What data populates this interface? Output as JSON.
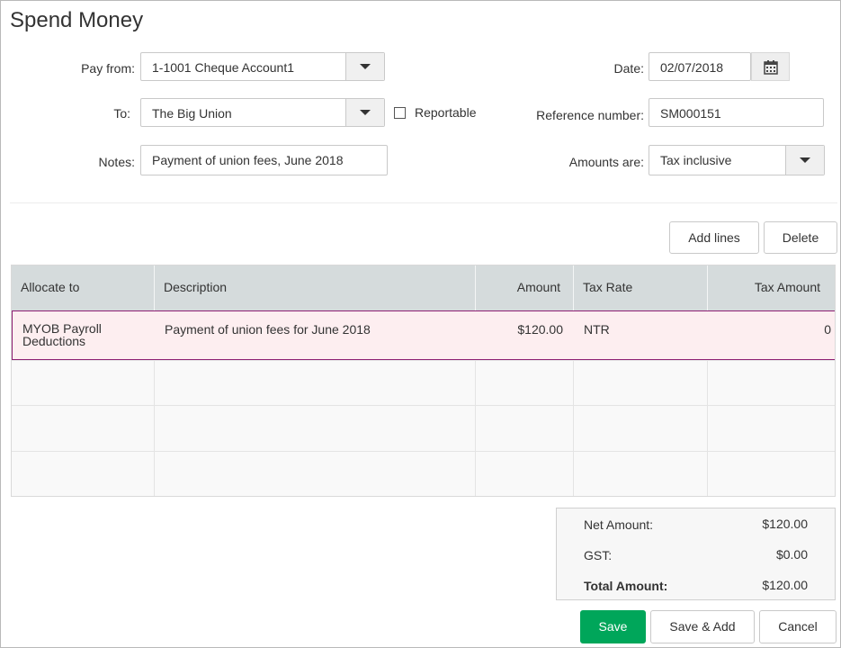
{
  "title": "Spend Money",
  "form": {
    "pay_from": {
      "label": "Pay from:",
      "value": "1-1001 Cheque Account1"
    },
    "to": {
      "label": "To:",
      "value": "The Big Union"
    },
    "reportable": {
      "label": "Reportable",
      "checked": false
    },
    "notes": {
      "label": "Notes:",
      "value": "Payment of union fees, June 2018"
    },
    "date": {
      "label": "Date:",
      "value": "02/07/2018"
    },
    "reference": {
      "label": "Reference number:",
      "value": "SM000151"
    },
    "amounts_are": {
      "label": "Amounts are:",
      "value": "Tax inclusive"
    }
  },
  "actions": {
    "add_lines": "Add lines",
    "delete": "Delete"
  },
  "table": {
    "columns": [
      "Allocate to",
      "Description",
      "Amount",
      "Tax Rate",
      "Tax Amount"
    ],
    "rows": [
      {
        "allocate_to_line1": "MYOB Payroll",
        "allocate_to_line2": "Deductions",
        "description": "Payment of union fees for June 2018",
        "amount": "$120.00",
        "tax_rate": "NTR",
        "tax_amount": "0"
      }
    ]
  },
  "totals": {
    "net_label": "Net Amount:",
    "net_value": "$120.00",
    "gst_label": "GST:",
    "gst_value": "$0.00",
    "total_label": "Total Amount:",
    "total_value": "$120.00"
  },
  "footer": {
    "save": "Save",
    "save_add": "Save & Add",
    "cancel": "Cancel"
  },
  "colors": {
    "primary": "#00a65a",
    "active_row_border": "#8e1f73",
    "active_row_bg": "#fdeef0",
    "header_bg": "#d5dbdc"
  },
  "icons": {
    "date_picker": "calendar-icon",
    "dropdown": "chevron-down-icon"
  }
}
